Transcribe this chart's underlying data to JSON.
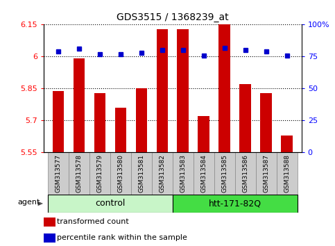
{
  "title": "GDS3515 / 1368239_at",
  "samples": [
    "GSM313577",
    "GSM313578",
    "GSM313579",
    "GSM313580",
    "GSM313581",
    "GSM313582",
    "GSM313583",
    "GSM313584",
    "GSM313585",
    "GSM313586",
    "GSM313587",
    "GSM313588"
  ],
  "transformed_count": [
    5.84,
    5.99,
    5.83,
    5.76,
    5.85,
    6.13,
    6.13,
    5.72,
    6.15,
    5.87,
    5.83,
    5.63
  ],
  "percentile_rank": [
    79,
    81,
    77,
    77,
    78,
    80,
    80,
    76,
    82,
    80,
    79,
    76
  ],
  "control_indices": [
    0,
    1,
    2,
    3,
    4,
    5
  ],
  "htt_indices": [
    6,
    7,
    8,
    9,
    10,
    11
  ],
  "group_labels": [
    "control",
    "htt-171-82Q"
  ],
  "group_colors": [
    "#c8f5c8",
    "#44dd44"
  ],
  "ylim_left": [
    5.55,
    6.15
  ],
  "ylim_right": [
    0,
    100
  ],
  "yticks_left": [
    5.55,
    5.7,
    5.85,
    6.0,
    6.15
  ],
  "yticks_right": [
    0,
    25,
    50,
    75,
    100
  ],
  "ytick_labels_left": [
    "5.55",
    "5.7",
    "5.85",
    "6",
    "6.15"
  ],
  "ytick_labels_right": [
    "0",
    "25",
    "50",
    "75",
    "100%"
  ],
  "bar_color": "#CC0000",
  "dot_color": "#0000CC",
  "bar_bottom": 5.55,
  "sample_box_color": "#cccccc",
  "sample_box_edge": "#888888",
  "agent_label": "agent",
  "legend_items": [
    {
      "label": "transformed count",
      "color": "#CC0000"
    },
    {
      "label": "percentile rank within the sample",
      "color": "#0000CC"
    }
  ],
  "dotted_line_percents": [
    75,
    50,
    25
  ],
  "dotted_line_at_100": true
}
